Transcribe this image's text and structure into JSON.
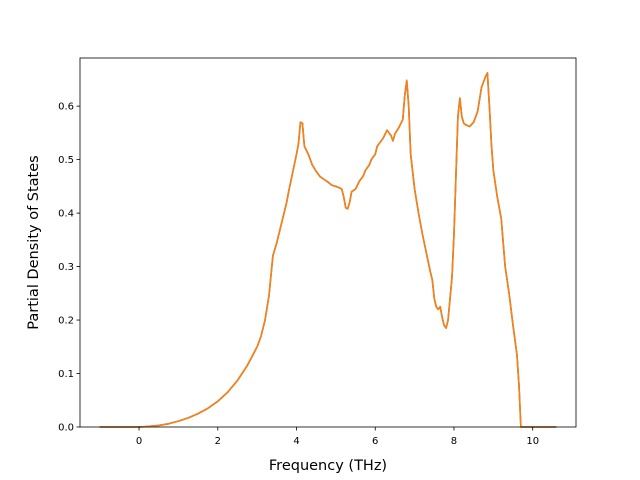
{
  "chart_data": {
    "type": "line",
    "title": "",
    "xlabel": "Frequency (THz)",
    "ylabel": "Partial Density of States",
    "xlim": [
      -1.5,
      11.1
    ],
    "ylim": [
      0.0,
      0.69
    ],
    "xticks": [
      0,
      2,
      4,
      6,
      8,
      10
    ],
    "yticks": [
      0.0,
      0.1,
      0.2,
      0.3,
      0.4,
      0.5,
      0.6
    ],
    "x_tick_labels": [
      "0",
      "2",
      "4",
      "6",
      "8",
      "10"
    ],
    "y_tick_labels": [
      "0.0",
      "0.1",
      "0.2",
      "0.3",
      "0.4",
      "0.5",
      "0.6"
    ],
    "grid": false,
    "legend": "none",
    "series": [
      {
        "color": "#1f77b4",
        "points": [
          [
            -1.0,
            0.0
          ],
          [
            0.0,
            0.0
          ],
          [
            0.25,
            0.001
          ],
          [
            0.5,
            0.003
          ],
          [
            0.75,
            0.006
          ],
          [
            1.0,
            0.011
          ],
          [
            1.25,
            0.017
          ],
          [
            1.5,
            0.025
          ],
          [
            1.75,
            0.035
          ],
          [
            2.0,
            0.048
          ],
          [
            2.25,
            0.065
          ],
          [
            2.5,
            0.087
          ],
          [
            2.75,
            0.115
          ],
          [
            3.0,
            0.15
          ],
          [
            3.1,
            0.17
          ],
          [
            3.2,
            0.2
          ],
          [
            3.3,
            0.245
          ],
          [
            3.4,
            0.32
          ],
          [
            3.5,
            0.345
          ],
          [
            3.6,
            0.375
          ],
          [
            3.7,
            0.405
          ],
          [
            3.75,
            0.42
          ],
          [
            3.8,
            0.44
          ],
          [
            3.9,
            0.475
          ],
          [
            4.0,
            0.51
          ],
          [
            4.05,
            0.53
          ],
          [
            4.1,
            0.57
          ],
          [
            4.15,
            0.568
          ],
          [
            4.2,
            0.525
          ],
          [
            4.3,
            0.51
          ],
          [
            4.4,
            0.49
          ],
          [
            4.5,
            0.478
          ],
          [
            4.6,
            0.468
          ],
          [
            4.7,
            0.463
          ],
          [
            4.8,
            0.458
          ],
          [
            4.9,
            0.452
          ],
          [
            5.0,
            0.45
          ],
          [
            5.1,
            0.447
          ],
          [
            5.15,
            0.445
          ],
          [
            5.2,
            0.43
          ],
          [
            5.25,
            0.41
          ],
          [
            5.3,
            0.408
          ],
          [
            5.35,
            0.42
          ],
          [
            5.4,
            0.44
          ],
          [
            5.5,
            0.445
          ],
          [
            5.6,
            0.46
          ],
          [
            5.7,
            0.47
          ],
          [
            5.75,
            0.48
          ],
          [
            5.8,
            0.485
          ],
          [
            5.85,
            0.49
          ],
          [
            5.9,
            0.5
          ],
          [
            6.0,
            0.51
          ],
          [
            6.05,
            0.525
          ],
          [
            6.1,
            0.53
          ],
          [
            6.2,
            0.54
          ],
          [
            6.3,
            0.555
          ],
          [
            6.4,
            0.545
          ],
          [
            6.45,
            0.535
          ],
          [
            6.5,
            0.548
          ],
          [
            6.6,
            0.56
          ],
          [
            6.7,
            0.575
          ],
          [
            6.75,
            0.62
          ],
          [
            6.8,
            0.648
          ],
          [
            6.85,
            0.6
          ],
          [
            6.9,
            0.51
          ],
          [
            7.0,
            0.445
          ],
          [
            7.1,
            0.4
          ],
          [
            7.2,
            0.36
          ],
          [
            7.3,
            0.325
          ],
          [
            7.4,
            0.29
          ],
          [
            7.45,
            0.275
          ],
          [
            7.5,
            0.24
          ],
          [
            7.55,
            0.225
          ],
          [
            7.6,
            0.22
          ],
          [
            7.65,
            0.225
          ],
          [
            7.7,
            0.205
          ],
          [
            7.75,
            0.19
          ],
          [
            7.8,
            0.185
          ],
          [
            7.85,
            0.2
          ],
          [
            7.9,
            0.24
          ],
          [
            7.95,
            0.28
          ],
          [
            8.0,
            0.36
          ],
          [
            8.05,
            0.47
          ],
          [
            8.1,
            0.58
          ],
          [
            8.15,
            0.615
          ],
          [
            8.2,
            0.58
          ],
          [
            8.25,
            0.568
          ],
          [
            8.3,
            0.565
          ],
          [
            8.4,
            0.562
          ],
          [
            8.5,
            0.57
          ],
          [
            8.6,
            0.59
          ],
          [
            8.7,
            0.635
          ],
          [
            8.8,
            0.655
          ],
          [
            8.85,
            0.662
          ],
          [
            8.9,
            0.6
          ],
          [
            8.95,
            0.53
          ],
          [
            9.0,
            0.48
          ],
          [
            9.1,
            0.43
          ],
          [
            9.2,
            0.39
          ],
          [
            9.25,
            0.345
          ],
          [
            9.3,
            0.3
          ],
          [
            9.4,
            0.25
          ],
          [
            9.5,
            0.19
          ],
          [
            9.6,
            0.135
          ],
          [
            9.65,
            0.08
          ],
          [
            9.7,
            0.0
          ],
          [
            10.6,
            0.0
          ]
        ]
      },
      {
        "color": "#ff7f0e",
        "points": [
          [
            -1.0,
            0.0
          ],
          [
            0.0,
            0.0
          ],
          [
            0.25,
            0.001
          ],
          [
            0.5,
            0.003
          ],
          [
            0.75,
            0.006
          ],
          [
            1.0,
            0.011
          ],
          [
            1.25,
            0.017
          ],
          [
            1.5,
            0.025
          ],
          [
            1.75,
            0.035
          ],
          [
            2.0,
            0.048
          ],
          [
            2.25,
            0.065
          ],
          [
            2.5,
            0.087
          ],
          [
            2.75,
            0.115
          ],
          [
            3.0,
            0.15
          ],
          [
            3.1,
            0.17
          ],
          [
            3.2,
            0.2
          ],
          [
            3.3,
            0.245
          ],
          [
            3.4,
            0.32
          ],
          [
            3.5,
            0.345
          ],
          [
            3.6,
            0.375
          ],
          [
            3.7,
            0.405
          ],
          [
            3.75,
            0.42
          ],
          [
            3.8,
            0.44
          ],
          [
            3.9,
            0.475
          ],
          [
            4.0,
            0.51
          ],
          [
            4.05,
            0.53
          ],
          [
            4.1,
            0.57
          ],
          [
            4.15,
            0.568
          ],
          [
            4.2,
            0.525
          ],
          [
            4.3,
            0.51
          ],
          [
            4.4,
            0.49
          ],
          [
            4.5,
            0.478
          ],
          [
            4.6,
            0.468
          ],
          [
            4.7,
            0.463
          ],
          [
            4.8,
            0.458
          ],
          [
            4.9,
            0.452
          ],
          [
            5.0,
            0.45
          ],
          [
            5.1,
            0.447
          ],
          [
            5.15,
            0.445
          ],
          [
            5.2,
            0.43
          ],
          [
            5.25,
            0.41
          ],
          [
            5.3,
            0.408
          ],
          [
            5.35,
            0.42
          ],
          [
            5.4,
            0.44
          ],
          [
            5.5,
            0.445
          ],
          [
            5.6,
            0.46
          ],
          [
            5.7,
            0.47
          ],
          [
            5.75,
            0.48
          ],
          [
            5.8,
            0.485
          ],
          [
            5.85,
            0.49
          ],
          [
            5.9,
            0.5
          ],
          [
            6.0,
            0.51
          ],
          [
            6.05,
            0.525
          ],
          [
            6.1,
            0.53
          ],
          [
            6.2,
            0.54
          ],
          [
            6.3,
            0.555
          ],
          [
            6.4,
            0.545
          ],
          [
            6.45,
            0.535
          ],
          [
            6.5,
            0.548
          ],
          [
            6.6,
            0.56
          ],
          [
            6.7,
            0.575
          ],
          [
            6.75,
            0.62
          ],
          [
            6.8,
            0.648
          ],
          [
            6.85,
            0.6
          ],
          [
            6.9,
            0.51
          ],
          [
            7.0,
            0.445
          ],
          [
            7.1,
            0.4
          ],
          [
            7.2,
            0.36
          ],
          [
            7.3,
            0.325
          ],
          [
            7.4,
            0.29
          ],
          [
            7.45,
            0.275
          ],
          [
            7.5,
            0.24
          ],
          [
            7.55,
            0.225
          ],
          [
            7.6,
            0.22
          ],
          [
            7.65,
            0.225
          ],
          [
            7.7,
            0.205
          ],
          [
            7.75,
            0.19
          ],
          [
            7.8,
            0.185
          ],
          [
            7.85,
            0.2
          ],
          [
            7.9,
            0.24
          ],
          [
            7.95,
            0.28
          ],
          [
            8.0,
            0.36
          ],
          [
            8.05,
            0.47
          ],
          [
            8.1,
            0.58
          ],
          [
            8.15,
            0.615
          ],
          [
            8.2,
            0.58
          ],
          [
            8.25,
            0.568
          ],
          [
            8.3,
            0.565
          ],
          [
            8.4,
            0.562
          ],
          [
            8.5,
            0.57
          ],
          [
            8.6,
            0.59
          ],
          [
            8.7,
            0.635
          ],
          [
            8.8,
            0.655
          ],
          [
            8.85,
            0.662
          ],
          [
            8.9,
            0.6
          ],
          [
            8.95,
            0.53
          ],
          [
            9.0,
            0.48
          ],
          [
            9.1,
            0.43
          ],
          [
            9.2,
            0.39
          ],
          [
            9.25,
            0.345
          ],
          [
            9.3,
            0.3
          ],
          [
            9.4,
            0.25
          ],
          [
            9.5,
            0.19
          ],
          [
            9.6,
            0.135
          ],
          [
            9.65,
            0.08
          ],
          [
            9.7,
            0.0
          ],
          [
            10.6,
            0.0
          ]
        ]
      }
    ]
  }
}
